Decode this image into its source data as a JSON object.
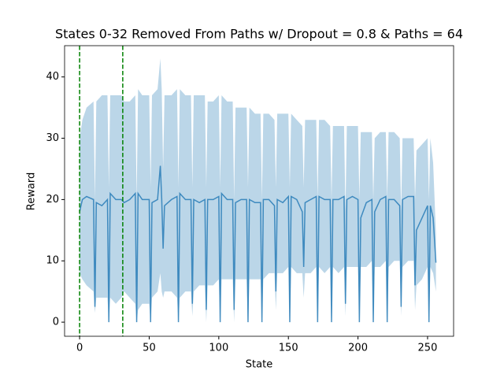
{
  "chart_data": {
    "type": "line",
    "title": "States 0-32 Removed From Paths w/ Dropout = 0.8 & Paths = 64",
    "x_label": "State",
    "y_label": "Reward",
    "color": "#1f77b4",
    "band_color": "#1f77b4",
    "vline_color": "#008000",
    "vlines": [
      0,
      31
    ],
    "xlim": [
      -10.8,
      268.7
    ],
    "ylim": [
      -2.3,
      45.1
    ],
    "xticks": [
      0,
      50,
      100,
      150,
      200,
      250
    ],
    "yticks": [
      0,
      10,
      20,
      30,
      40
    ],
    "x": [
      0,
      2,
      5,
      10,
      11,
      12,
      16,
      20,
      21,
      22,
      26,
      30,
      32,
      36,
      40,
      41,
      42,
      45,
      50,
      51,
      52,
      56,
      58,
      59,
      60,
      61,
      66,
      70,
      71,
      72,
      76,
      80,
      81,
      82,
      86,
      90,
      91,
      92,
      96,
      100,
      101,
      102,
      106,
      110,
      111,
      112,
      116,
      120,
      121,
      122,
      126,
      130,
      131,
      132,
      136,
      140,
      141,
      142,
      146,
      150,
      151,
      152,
      156,
      160,
      161,
      162,
      166,
      170,
      171,
      172,
      176,
      180,
      181,
      182,
      186,
      190,
      191,
      192,
      196,
      200,
      201,
      202,
      206,
      210,
      211,
      212,
      216,
      220,
      221,
      222,
      226,
      230,
      231,
      232,
      236,
      240,
      241,
      242,
      246,
      250,
      251,
      252,
      254,
      256
    ],
    "values": [
      18,
      20,
      20.5,
      20,
      2.5,
      19.5,
      19,
      20,
      0,
      21,
      20,
      20,
      19.5,
      20,
      21,
      0,
      21,
      20,
      20,
      0,
      19.5,
      20,
      25.5,
      20,
      12,
      19,
      20,
      20.5,
      0,
      21,
      20,
      20,
      3,
      20,
      19.5,
      20,
      2,
      20,
      20,
      20.5,
      0,
      21,
      20,
      20,
      2,
      19.5,
      20,
      20,
      0,
      20,
      19.5,
      19.5,
      0,
      20,
      20,
      19,
      5,
      20,
      19.5,
      20.5,
      0,
      20.5,
      20,
      18,
      9,
      19.5,
      20,
      20.5,
      0,
      20.5,
      20,
      20,
      0,
      20,
      20,
      20.5,
      3,
      20,
      20.5,
      20,
      0,
      17,
      19.5,
      20,
      0,
      18,
      20,
      20.5,
      0,
      20,
      20,
      19,
      2.5,
      20,
      20.5,
      20.5,
      6,
      15,
      17,
      19,
      0,
      19,
      17,
      9.7
    ],
    "upper": [
      30,
      33,
      35,
      36,
      20,
      36,
      37,
      37,
      22,
      37,
      37,
      37,
      36,
      36,
      37,
      20,
      38,
      37,
      37,
      22,
      37,
      38,
      43,
      38,
      25,
      37,
      37,
      38,
      22,
      38,
      37,
      37,
      22,
      37,
      37,
      37,
      22,
      36,
      36,
      37,
      22,
      37,
      36,
      36,
      20,
      35,
      35,
      35,
      22,
      35,
      34,
      34,
      20,
      34,
      34,
      33,
      22,
      34,
      34,
      34,
      22,
      34,
      33,
      32,
      22,
      33,
      33,
      33,
      20,
      33,
      33,
      32,
      20,
      32,
      32,
      32,
      18,
      32,
      32,
      32,
      20,
      31,
      31,
      31,
      20,
      30,
      31,
      31,
      20,
      31,
      31,
      30,
      18,
      30,
      30,
      30,
      20,
      28,
      29,
      30,
      20,
      30,
      26,
      14.5
    ],
    "lower": [
      8,
      7,
      6,
      5,
      1.5,
      4,
      4,
      4,
      0,
      4,
      3,
      4,
      5,
      4,
      3,
      0,
      2,
      3,
      3,
      0,
      4,
      5,
      8,
      5,
      4,
      5,
      5,
      4,
      0,
      4,
      5,
      5,
      1,
      5,
      6,
      6,
      0,
      6,
      6,
      7,
      0,
      7,
      7,
      7,
      0,
      7,
      7,
      7,
      0,
      7,
      7,
      7,
      0,
      7,
      8,
      8,
      2,
      8,
      8,
      9,
      0,
      9,
      8,
      8,
      4,
      8,
      8,
      9,
      0,
      9,
      8,
      9,
      0,
      9,
      8,
      9,
      1,
      9,
      9,
      9,
      0,
      9,
      9,
      10,
      0,
      9,
      9,
      10,
      0,
      9,
      10,
      10,
      1,
      9,
      10,
      10,
      2,
      6,
      7,
      9,
      0,
      9,
      8,
      5
    ]
  }
}
